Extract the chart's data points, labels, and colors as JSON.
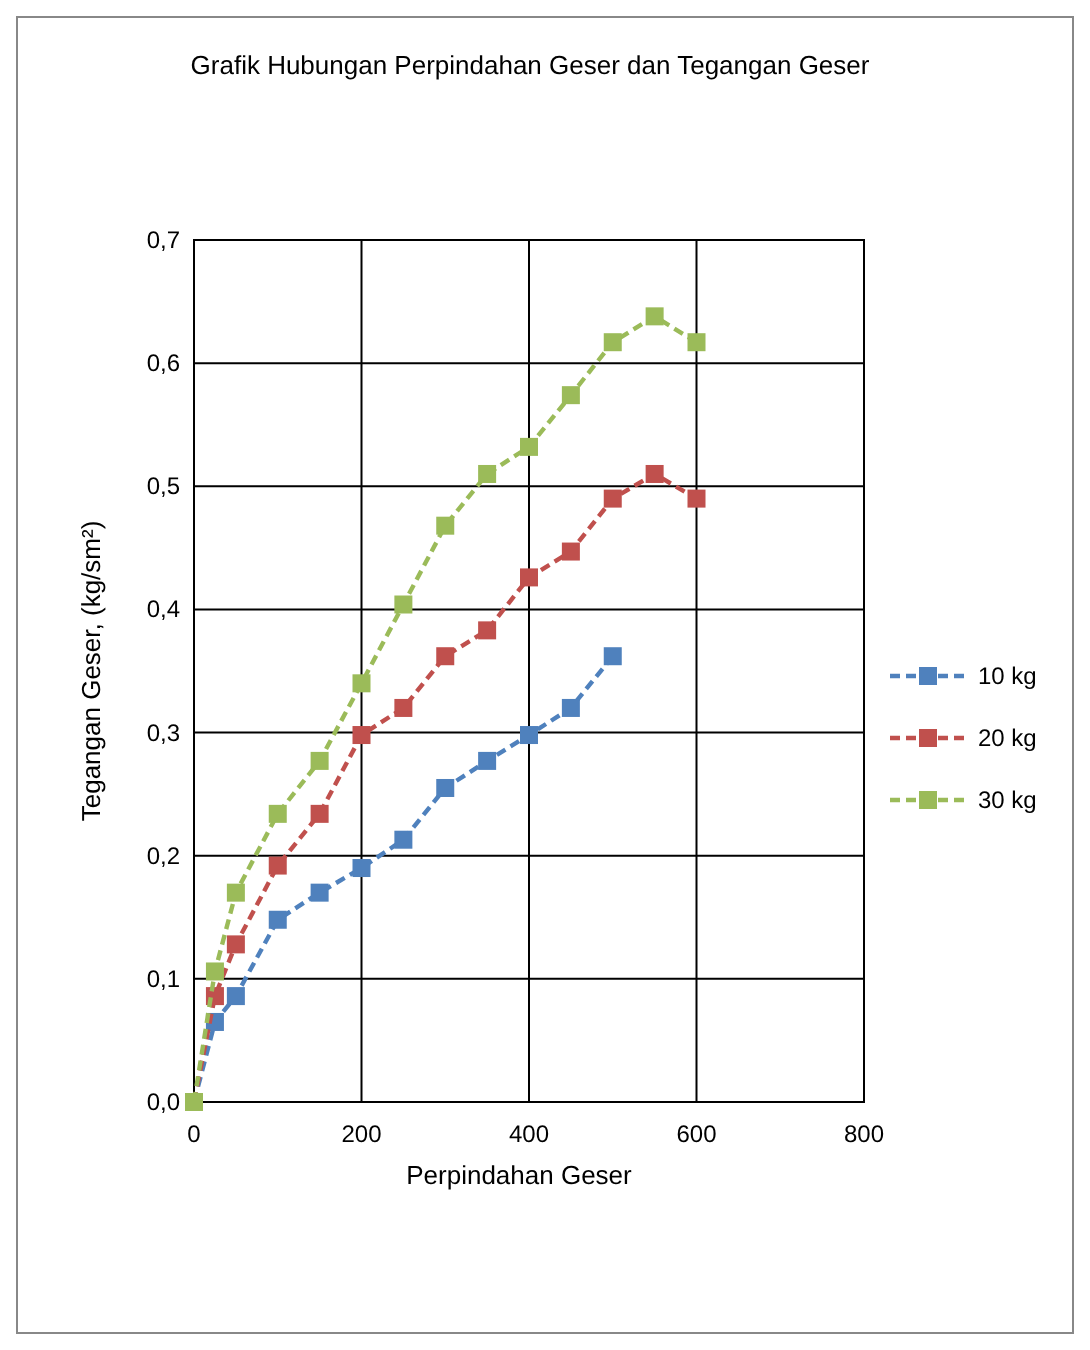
{
  "chart_data": {
    "type": "line",
    "title": "Grafik Hubungan Perpindahan Geser dan Tegangan Geser",
    "xlabel": "Perpindahan Geser",
    "ylabel": "Tegangan Geser, (kg/sm²)",
    "xlim": [
      0,
      800
    ],
    "xticks": [
      0,
      200,
      400,
      600,
      800
    ],
    "ylim": [
      0,
      0.7
    ],
    "yticks": [
      {
        "value": 0,
        "label": "0,0"
      },
      {
        "value": 0.1,
        "label": "0,1"
      },
      {
        "value": 0.2,
        "label": "0,2"
      },
      {
        "value": 0.3,
        "label": "0,3"
      },
      {
        "value": 0.4,
        "label": "0,4"
      },
      {
        "value": 0.5,
        "label": "0,5"
      },
      {
        "value": 0.6,
        "label": "0,6"
      },
      {
        "value": 0.7,
        "label": "0,7"
      }
    ],
    "grid": true,
    "legend": "right",
    "marker": "square",
    "line_style": "dashed",
    "series": [
      {
        "name": "10 kg",
        "color": "#4f81bd",
        "x": [
          0,
          25,
          50,
          100,
          150,
          200,
          250,
          300,
          350,
          400,
          450,
          500
        ],
        "values": [
          0,
          0.065,
          0.086,
          0.148,
          0.17,
          0.19,
          0.213,
          0.255,
          0.277,
          0.298,
          0.32,
          0.362
        ]
      },
      {
        "name": "20 kg",
        "color": "#c0504d",
        "x": [
          0,
          25,
          50,
          100,
          150,
          200,
          250,
          300,
          350,
          400,
          450,
          500,
          550,
          600
        ],
        "values": [
          0,
          0.086,
          0.128,
          0.192,
          0.234,
          0.298,
          0.32,
          0.362,
          0.383,
          0.426,
          0.447,
          0.49,
          0.51,
          0.49
        ]
      },
      {
        "name": "30 kg",
        "color": "#9bbb59",
        "x": [
          0,
          25,
          50,
          100,
          150,
          200,
          250,
          300,
          350,
          400,
          450,
          500,
          550,
          600
        ],
        "values": [
          0,
          0.106,
          0.17,
          0.234,
          0.277,
          0.34,
          0.404,
          0.468,
          0.51,
          0.532,
          0.574,
          0.617,
          0.638,
          0.617
        ]
      }
    ]
  }
}
